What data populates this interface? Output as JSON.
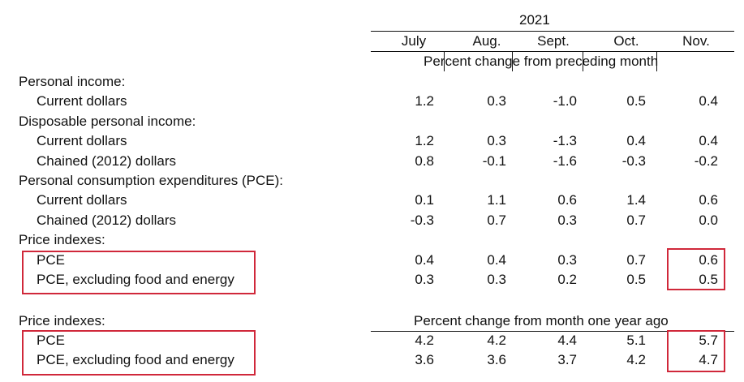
{
  "year": "2021",
  "months": [
    "July",
    "Aug.",
    "Sept.",
    "Oct.",
    "Nov."
  ],
  "section1_header": "Percent change from preceding month",
  "section2_header": "Percent change from month one year ago",
  "rows": [
    {
      "label": "Personal income:",
      "values": []
    },
    {
      "label": "Current dollars",
      "values": [
        "1.2",
        "0.3",
        "-1.0",
        "0.5",
        "0.4"
      ]
    },
    {
      "label": "Disposable personal income:",
      "values": []
    },
    {
      "label": "Current dollars",
      "values": [
        "1.2",
        "0.3",
        "-1.3",
        "0.4",
        "0.4"
      ]
    },
    {
      "label": "Chained (2012) dollars",
      "values": [
        "0.8",
        "-0.1",
        "-1.6",
        "-0.3",
        "-0.2"
      ]
    },
    {
      "label": "Personal consumption expenditures (PCE):",
      "values": []
    },
    {
      "label": "Current dollars",
      "values": [
        "0.1",
        "1.1",
        "0.6",
        "1.4",
        "0.6"
      ]
    },
    {
      "label": "Chained (2012) dollars",
      "values": [
        "-0.3",
        "0.7",
        "0.3",
        "0.7",
        "0.0"
      ]
    },
    {
      "label": "Price indexes:",
      "values": []
    },
    {
      "label": "PCE",
      "values": [
        "0.4",
        "0.4",
        "0.3",
        "0.7",
        "0.6"
      ]
    },
    {
      "label": "PCE, excluding food and energy",
      "values": [
        "0.3",
        "0.3",
        "0.2",
        "0.5",
        "0.5"
      ]
    }
  ],
  "rows2": [
    {
      "label": "Price indexes:",
      "values": []
    },
    {
      "label": "PCE",
      "values": [
        "4.2",
        "4.2",
        "4.4",
        "5.1",
        "5.7"
      ]
    },
    {
      "label": "PCE, excluding food and energy",
      "values": [
        "3.6",
        "3.6",
        "3.7",
        "4.2",
        "4.7"
      ]
    }
  ],
  "highlight_color": "#d0283a"
}
